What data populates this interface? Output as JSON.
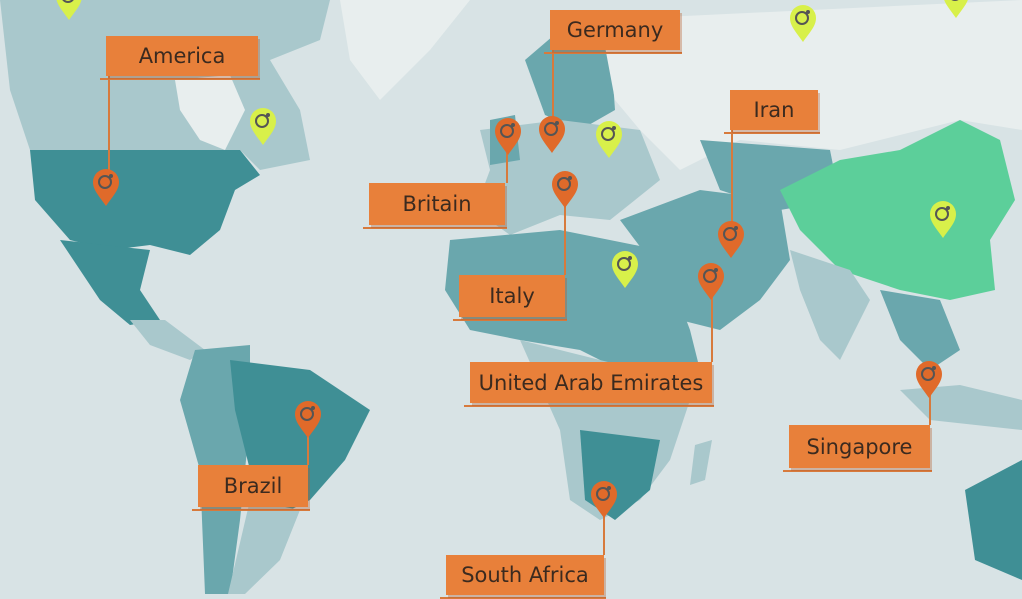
{
  "colors": {
    "ocean": "#d8e3e5",
    "land_dark": "#3f8f95",
    "land_mid": "#6aa7ad",
    "land_light": "#a9c8cc",
    "land_pale": "#e8eeee",
    "china": "#5ccf9a",
    "label_bg": "#e8803a",
    "pin_orange": "#e06a2a",
    "pin_yellow": "#d8f04a"
  },
  "labels": [
    {
      "name": "America",
      "pin_icon": "map-pin-icon",
      "pin_color": "orange"
    },
    {
      "name": "Germany",
      "pin_icon": "map-pin-icon",
      "pin_color": "orange"
    },
    {
      "name": "Iran",
      "pin_icon": "map-pin-icon",
      "pin_color": "orange"
    },
    {
      "name": "Britain",
      "pin_icon": "map-pin-icon",
      "pin_color": "orange"
    },
    {
      "name": "Italy",
      "pin_icon": "map-pin-icon",
      "pin_color": "orange"
    },
    {
      "name": "United Arab Emirates",
      "pin_icon": "map-pin-icon",
      "pin_color": "orange"
    },
    {
      "name": "Singapore",
      "pin_icon": "map-pin-icon",
      "pin_color": "orange"
    },
    {
      "name": "Brazil",
      "pin_icon": "map-pin-icon",
      "pin_color": "orange"
    },
    {
      "name": "South Africa",
      "pin_icon": "map-pin-icon",
      "pin_color": "orange"
    }
  ],
  "unlabeled_pins": {
    "count": 7,
    "icon": "map-pin-icon",
    "color": "yellow"
  }
}
